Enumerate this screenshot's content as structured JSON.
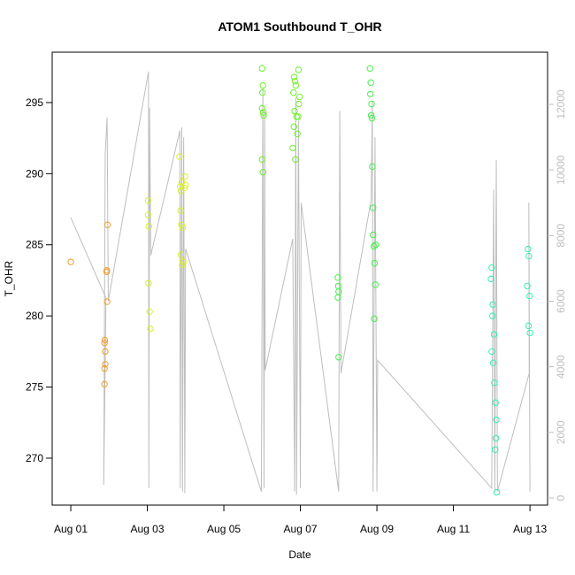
{
  "chart_data": {
    "type": "scatter",
    "title": "ATOM1 Southbound T_OHR",
    "x_label": "Date",
    "y_label": "T_OHR",
    "xlim": [
      0.514,
      13.46
    ],
    "xticks": [
      {
        "value": 1,
        "label": "Aug 01"
      },
      {
        "value": 3,
        "label": "Aug 03"
      },
      {
        "value": 5,
        "label": "Aug 05"
      },
      {
        "value": 7,
        "label": "Aug 07"
      },
      {
        "value": 9,
        "label": "Aug 09"
      },
      {
        "value": 11,
        "label": "Aug 11"
      },
      {
        "value": 13,
        "label": "Aug 13"
      }
    ],
    "ylim": [
      266.7,
      298.54
    ],
    "yticks": [
      270,
      275,
      280,
      285,
      290,
      295
    ],
    "y2lim": [
      -216,
      13591
    ],
    "y2ticks": [
      0,
      2000,
      4000,
      6000,
      8000,
      10000,
      12000
    ],
    "y2_color": "#bebebe",
    "series": [
      {
        "mode": "markers",
        "color": "#f39c2b",
        "x": [
          1.0,
          1.89,
          1.88,
          1.9,
          1.9,
          1.88,
          1.88,
          1.94,
          1.94,
          1.95,
          1.96
        ],
        "values": [
          283.8,
          278.3,
          278.1,
          277.5,
          276.6,
          276.3,
          275.2,
          283.2,
          283.1,
          281.0,
          286.4
        ]
      },
      {
        "mode": "markers",
        "color": "#d9f02a",
        "x": [
          3.02,
          3.02,
          3.04,
          3.03,
          3.06,
          3.08,
          3.84,
          3.86,
          3.88,
          3.9,
          3.87,
          3.89,
          3.92,
          3.88,
          3.94,
          3.91,
          3.98,
          3.97,
          4.0
        ],
        "values": [
          288.1,
          287.1,
          286.3,
          282.3,
          280.3,
          279.1,
          291.2,
          289.1,
          288.8,
          289.4,
          287.4,
          286.4,
          286.2,
          284.3,
          283.8,
          283.6,
          289.8,
          289.0,
          289.2
        ]
      },
      {
        "mode": "markers",
        "color": "#6ef02a",
        "x": [
          6.0,
          6.02,
          6.01,
          6.0,
          6.03,
          6.04,
          6.0,
          6.02,
          6.84,
          6.86,
          6.88,
          6.82,
          6.85,
          6.9,
          6.83,
          6.92,
          6.8,
          6.87,
          6.95,
          6.98,
          6.96,
          6.94
        ],
        "values": [
          297.4,
          296.2,
          295.7,
          294.6,
          294.3,
          294.1,
          291.0,
          290.1,
          296.8,
          296.5,
          296.2,
          295.7,
          294.4,
          294.0,
          293.3,
          292.8,
          291.8,
          291.0,
          297.3,
          295.4,
          294.9,
          294.0
        ]
      },
      {
        "mode": "markers",
        "color": "#45f04a",
        "x": [
          7.98,
          7.99,
          8.0,
          7.98,
          8.0,
          8.82,
          8.84,
          8.83,
          8.86,
          8.85,
          8.87,
          8.88,
          8.9,
          8.9,
          8.92,
          8.94,
          8.96,
          8.93,
          8.97
        ],
        "values": [
          282.7,
          282.1,
          281.7,
          281.3,
          277.1,
          297.4,
          296.4,
          295.6,
          294.9,
          294.1,
          293.9,
          290.5,
          287.6,
          285.7,
          284.9,
          283.7,
          282.2,
          279.8,
          285.0
        ]
      },
      {
        "mode": "markers",
        "color": "#33eeb5",
        "x": [
          12.0,
          11.98,
          12.03,
          12.02,
          12.06,
          12.0,
          12.04,
          12.07,
          12.1,
          12.12,
          12.11,
          12.09,
          12.13,
          12.95,
          12.97,
          12.93,
          12.99,
          12.96,
          13.0
        ],
        "values": [
          283.4,
          282.6,
          280.8,
          280.0,
          278.7,
          277.5,
          276.7,
          275.3,
          273.9,
          272.7,
          271.4,
          270.6,
          267.6,
          284.7,
          284.2,
          282.1,
          281.4,
          279.3,
          278.8
        ]
      },
      {
        "mode": "line",
        "axis": "y2",
        "color": "#bebebe",
        "x": [
          1.0,
          1.92,
          1.86,
          1.9,
          1.95,
          1.98,
          3.03,
          3.04,
          3.06,
          3.09,
          3.85,
          3.86,
          3.9,
          3.92,
          3.95,
          3.98,
          4.0,
          5.98,
          6.02,
          6.05,
          6.07,
          6.08,
          6.8,
          6.85,
          6.88,
          6.9,
          6.95,
          7.0,
          7.02,
          8.0,
          8.03,
          8.06,
          8.85,
          8.88,
          8.9,
          8.95,
          9.0,
          9.02,
          12.0,
          12.05,
          12.08,
          12.12,
          12.15,
          12.98,
          12.97,
          13.0
        ],
        "values": [
          8550,
          6100,
          400,
          10500,
          11600,
          6000,
          13000,
          300,
          11900,
          7400,
          11200,
          300,
          11300,
          200,
          11000,
          150,
          7600,
          200,
          12500,
          300,
          11800,
          3900,
          7900,
          200,
          12200,
          100,
          11500,
          300,
          9000,
          200,
          11800,
          3800,
          9100,
          12100,
          200,
          11000,
          200,
          4200,
          300,
          9400,
          200,
          10300,
          200,
          3800,
          9000,
          200
        ]
      }
    ]
  }
}
